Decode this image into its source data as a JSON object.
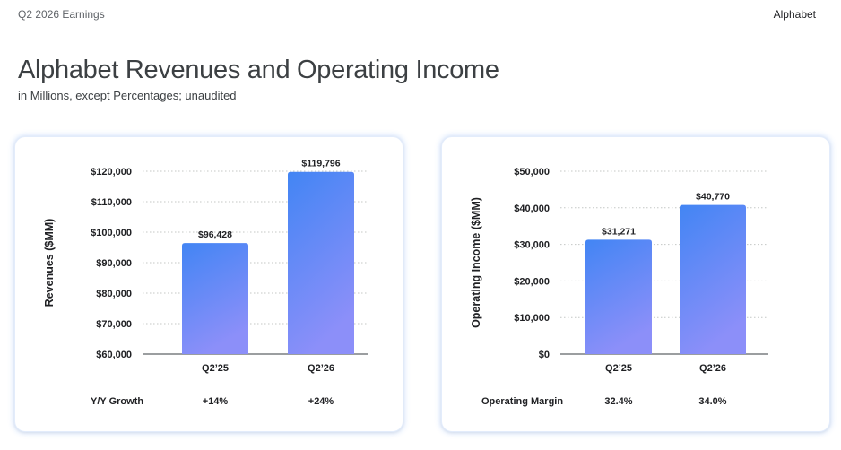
{
  "header": {
    "left_text": "Q2 2026 Earnings",
    "right_text": "Alphabet"
  },
  "title": "Alphabet Revenues and Operating Income",
  "subtitle": "in Millions, except Percentages; unaudited",
  "colors": {
    "bar_top": "#4285f4",
    "bar_bottom": "#8c8ff9",
    "grid": "#c4c7c5",
    "axis": "#5f6368"
  },
  "chart_data": [
    {
      "type": "bar",
      "categories": [
        "Q2’25",
        "Q2’26"
      ],
      "values": [
        96428,
        119796
      ],
      "value_labels": [
        "$96,428",
        "$119,796"
      ],
      "ylabel": "Revenues ($MM)",
      "ylim": [
        60000,
        120000
      ],
      "yticks": [
        60000,
        70000,
        80000,
        90000,
        100000,
        110000,
        120000
      ],
      "ytick_labels": [
        "$60,000",
        "$70,000",
        "$80,000",
        "$90,000",
        "$100,000",
        "$110,000",
        "$120,000"
      ],
      "grid": true,
      "footer": {
        "label": "Y/Y Growth",
        "values": [
          "+14%",
          "+24%"
        ]
      }
    },
    {
      "type": "bar",
      "categories": [
        "Q2’25",
        "Q2’26"
      ],
      "values": [
        31271,
        40770
      ],
      "value_labels": [
        "$31,271",
        "$40,770"
      ],
      "ylabel": "Operating Income ($MM)",
      "ylim": [
        0,
        50000
      ],
      "yticks": [
        0,
        10000,
        20000,
        30000,
        40000,
        50000
      ],
      "ytick_labels": [
        "$0",
        "$10,000",
        "$20,000",
        "$30,000",
        "$40,000",
        "$50,000"
      ],
      "grid": true,
      "footer": {
        "label": "Operating Margin",
        "values": [
          "32.4%",
          "34.0%"
        ]
      }
    }
  ]
}
